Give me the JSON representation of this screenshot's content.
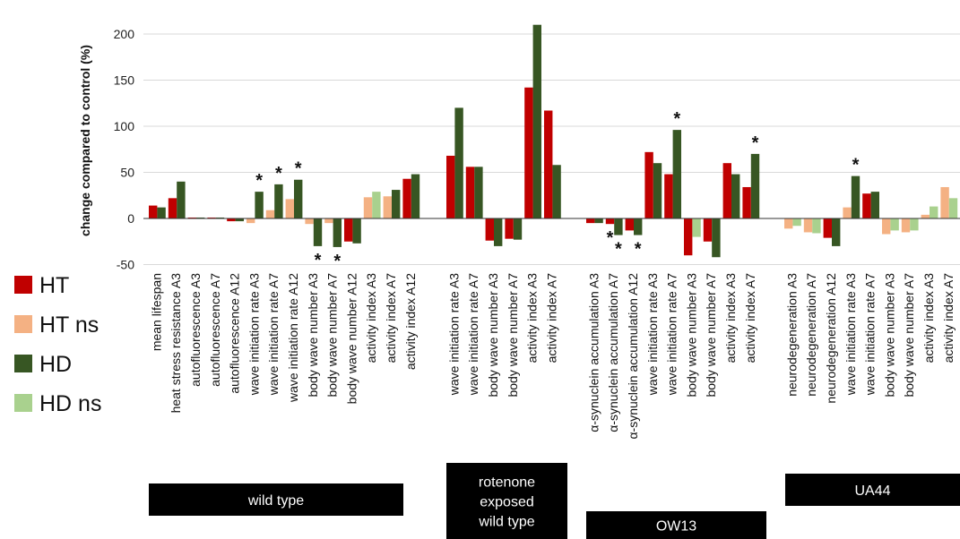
{
  "chart_data": {
    "type": "bar",
    "ylabel": "change compared to control (%)",
    "ylim": [
      -50,
      200
    ],
    "yticks": [
      200,
      150,
      100,
      50,
      0,
      -50
    ],
    "grid": true,
    "legend_placement": "left",
    "series": [
      {
        "name": "HT",
        "color": "#c00000"
      },
      {
        "name": "HT ns",
        "color": "#f4b183"
      },
      {
        "name": "HD",
        "color": "#375623"
      },
      {
        "name": "HD ns",
        "color": "#a9d18e"
      }
    ],
    "groups": [
      {
        "label_lines": [
          "wild type"
        ],
        "categories": [
          {
            "label": "mean lifespan",
            "ht": 14,
            "ht_sig": true,
            "hd": 12,
            "hd_sig": true,
            "ht_star": "",
            "hd_star": ""
          },
          {
            "label": "heat stress resistance A3",
            "ht": 22,
            "ht_sig": true,
            "hd": 40,
            "hd_sig": true,
            "ht_star": "",
            "hd_star": ""
          },
          {
            "label": "autofluorescence A3",
            "ht": 1,
            "ht_sig": true,
            "hd": 1,
            "hd_sig": true,
            "ht_star": "",
            "hd_star": ""
          },
          {
            "label": "autofluorescence A7",
            "ht": 1,
            "ht_sig": true,
            "hd": 1,
            "hd_sig": true,
            "ht_star": "",
            "hd_star": ""
          },
          {
            "label": "autofluorescence A12",
            "ht": -3,
            "ht_sig": true,
            "hd": -3,
            "hd_sig": true,
            "ht_star": "",
            "hd_star": ""
          },
          {
            "label": "wave initiation rate A3",
            "ht": -5,
            "ht_sig": false,
            "hd": 29,
            "hd_sig": true,
            "ht_star": "",
            "hd_star": "*"
          },
          {
            "label": "wave initiation rate A7",
            "ht": 9,
            "ht_sig": false,
            "hd": 37,
            "hd_sig": true,
            "ht_star": "",
            "hd_star": "*"
          },
          {
            "label": "wave initiation rate A12",
            "ht": 21,
            "ht_sig": false,
            "hd": 42,
            "hd_sig": true,
            "ht_star": "",
            "hd_star": "*"
          },
          {
            "label": "body wave number A3",
            "ht": -6,
            "ht_sig": false,
            "hd": -30,
            "hd_sig": true,
            "ht_star": "",
            "hd_star": "*"
          },
          {
            "label": "body wave number A7",
            "ht": -5,
            "ht_sig": false,
            "hd": -31,
            "hd_sig": true,
            "ht_star": "",
            "hd_star": "*"
          },
          {
            "label": "body wave number A12",
            "ht": -25,
            "ht_sig": true,
            "hd": -27,
            "hd_sig": true,
            "ht_star": "",
            "hd_star": ""
          },
          {
            "label": "activity index A3",
            "ht": 23,
            "ht_sig": false,
            "hd": 29,
            "hd_sig": false,
            "ht_star": "",
            "hd_star": ""
          },
          {
            "label": "activity index A7",
            "ht": 24,
            "ht_sig": false,
            "hd": 31,
            "hd_sig": true,
            "ht_star": "",
            "hd_star": ""
          },
          {
            "label": "activity index A12",
            "ht": 43,
            "ht_sig": true,
            "hd": 48,
            "hd_sig": true,
            "ht_star": "",
            "hd_star": ""
          }
        ]
      },
      {
        "label_lines": [
          "rotenone",
          "exposed",
          "wild type"
        ],
        "categories": [
          {
            "label": "wave initiation rate A3",
            "ht": 68,
            "ht_sig": true,
            "hd": 120,
            "hd_sig": true,
            "ht_star": "",
            "hd_star": ""
          },
          {
            "label": "wave initiation rate A7",
            "ht": 56,
            "ht_sig": true,
            "hd": 56,
            "hd_sig": true,
            "ht_star": "",
            "hd_star": ""
          },
          {
            "label": "body wave number A3",
            "ht": -24,
            "ht_sig": true,
            "hd": -30,
            "hd_sig": true,
            "ht_star": "",
            "hd_star": ""
          },
          {
            "label": "body wave number A7",
            "ht": -22,
            "ht_sig": true,
            "hd": -23,
            "hd_sig": true,
            "ht_star": "",
            "hd_star": ""
          },
          {
            "label": "activity index A3",
            "ht": 142,
            "ht_sig": true,
            "hd": 210,
            "hd_sig": true,
            "ht_star": "",
            "hd_star": ""
          },
          {
            "label": "activity index A7",
            "ht": 117,
            "ht_sig": true,
            "hd": 58,
            "hd_sig": true,
            "ht_star": "",
            "hd_star": ""
          }
        ]
      },
      {
        "label_lines": [
          "OW13"
        ],
        "categories": [
          {
            "label": "α-synuclein accumulation A3",
            "ht": -5,
            "ht_sig": true,
            "hd": -5,
            "hd_sig": true,
            "ht_star": "",
            "hd_star": ""
          },
          {
            "label": "α-synuclein accumulation A7",
            "ht": -6,
            "ht_sig": true,
            "hd": -18,
            "hd_sig": true,
            "ht_star": "*",
            "hd_star": "*"
          },
          {
            "label": "α-synuclein accumulation A12",
            "ht": -13,
            "ht_sig": true,
            "hd": -18,
            "hd_sig": true,
            "ht_star": "",
            "hd_star": "*"
          },
          {
            "label": "wave initiation rate A3",
            "ht": 72,
            "ht_sig": true,
            "hd": 60,
            "hd_sig": true,
            "ht_star": "",
            "hd_star": ""
          },
          {
            "label": "wave initiation rate A7",
            "ht": 48,
            "ht_sig": true,
            "hd": 96,
            "hd_sig": true,
            "ht_star": "",
            "hd_star": "*"
          },
          {
            "label": "body wave number A3",
            "ht": -40,
            "ht_sig": true,
            "hd": -20,
            "hd_sig": false,
            "ht_star": "",
            "hd_star": ""
          },
          {
            "label": "body wave number A7",
            "ht": -25,
            "ht_sig": true,
            "hd": -42,
            "hd_sig": true,
            "ht_star": "",
            "hd_star": ""
          },
          {
            "label": "activity index A3",
            "ht": 60,
            "ht_sig": true,
            "hd": 48,
            "hd_sig": true,
            "ht_star": "",
            "hd_star": ""
          },
          {
            "label": "activity index A7",
            "ht": 34,
            "ht_sig": true,
            "hd": 70,
            "hd_sig": true,
            "ht_star": "",
            "hd_star": "*"
          }
        ]
      },
      {
        "label_lines": [
          "UA44"
        ],
        "categories": [
          {
            "label": "neurodegeneration A3",
            "ht": -11,
            "ht_sig": false,
            "hd": -8,
            "hd_sig": false,
            "ht_star": "",
            "hd_star": ""
          },
          {
            "label": "neurodegeneration A7",
            "ht": -15,
            "ht_sig": false,
            "hd": -16,
            "hd_sig": false,
            "ht_star": "",
            "hd_star": ""
          },
          {
            "label": "neurodegeneration A12",
            "ht": -21,
            "ht_sig": true,
            "hd": -30,
            "hd_sig": true,
            "ht_star": "",
            "hd_star": ""
          },
          {
            "label": "wave initiation rate A3",
            "ht": 12,
            "ht_sig": false,
            "hd": 46,
            "hd_sig": true,
            "ht_star": "",
            "hd_star": "*"
          },
          {
            "label": "wave initiation rate A7",
            "ht": 27,
            "ht_sig": true,
            "hd": 29,
            "hd_sig": true,
            "ht_star": "",
            "hd_star": ""
          },
          {
            "label": "body wave number A3",
            "ht": -17,
            "ht_sig": false,
            "hd": -13,
            "hd_sig": false,
            "ht_star": "",
            "hd_star": ""
          },
          {
            "label": "body wave number A7",
            "ht": -15,
            "ht_sig": false,
            "hd": -13,
            "hd_sig": false,
            "ht_star": "",
            "hd_star": ""
          },
          {
            "label": "activity index A3",
            "ht": 4,
            "ht_sig": false,
            "hd": 13,
            "hd_sig": false,
            "ht_star": "",
            "hd_star": ""
          },
          {
            "label": "activity index A7",
            "ht": 34,
            "ht_sig": false,
            "hd": 22,
            "hd_sig": false,
            "ht_star": "",
            "hd_star": ""
          }
        ]
      }
    ]
  }
}
